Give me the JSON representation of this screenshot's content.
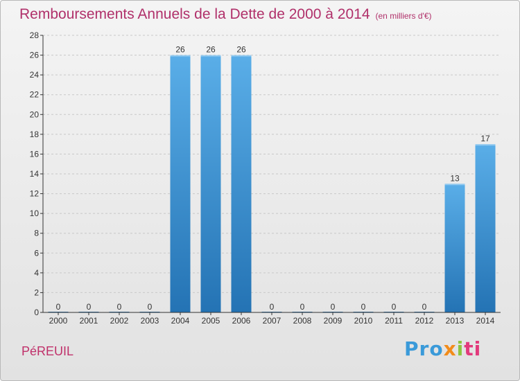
{
  "header": {
    "title": "Remboursements Annuels de la Dette de 2000 à 2014",
    "unit": "(en milliers d'€)"
  },
  "footer": {
    "town": "PéREUIL",
    "logo_parts": [
      "Pro",
      "x",
      "i",
      "ti"
    ]
  },
  "colors": {
    "bar_top": "#5aaee8",
    "bar_bottom": "#2473b4",
    "title": "#b0306a",
    "axis": "#333333",
    "grid": "#c8c8c8"
  },
  "chart_data": {
    "type": "bar",
    "title": "Remboursements Annuels de la Dette de 2000 à 2014",
    "xlabel": "",
    "ylabel": "",
    "categories": [
      "2000",
      "2001",
      "2002",
      "2003",
      "2004",
      "2005",
      "2006",
      "2007",
      "2008",
      "2009",
      "2010",
      "2011",
      "2012",
      "2013",
      "2014"
    ],
    "values": [
      0,
      0,
      0,
      0,
      26,
      26,
      26,
      0,
      0,
      0,
      0,
      0,
      0,
      13,
      17
    ],
    "ylim": [
      0,
      28
    ],
    "yticks": [
      0,
      2,
      4,
      6,
      8,
      10,
      12,
      14,
      16,
      18,
      20,
      22,
      24,
      26,
      28
    ],
    "grid": true,
    "data_labels": true
  }
}
